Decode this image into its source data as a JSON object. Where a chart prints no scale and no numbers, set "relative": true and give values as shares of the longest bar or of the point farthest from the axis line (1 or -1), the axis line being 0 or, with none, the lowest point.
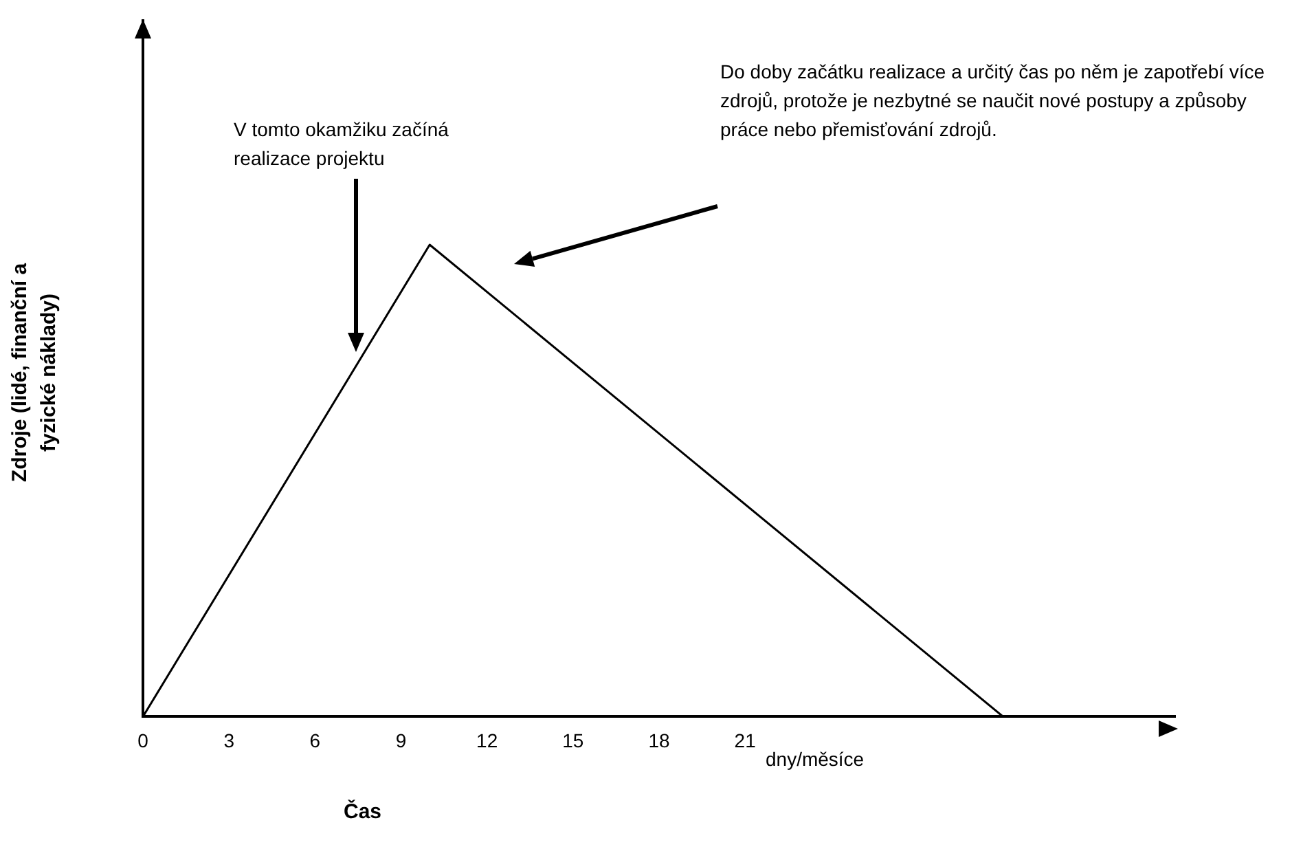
{
  "chart_data": {
    "type": "line",
    "relative": true,
    "xlabel": "Čas",
    "ylabel": "Zdroje  (lidé, finanční a fyzické náklady)",
    "x": [
      0,
      10,
      30
    ],
    "values": [
      0,
      1,
      0
    ],
    "color": "#000000",
    "xlim": [
      0,
      36
    ],
    "xticks": [
      0,
      3,
      6,
      9,
      12,
      15,
      18,
      21
    ],
    "grid": false,
    "legend": false,
    "marker": "none",
    "line_style": "solid",
    "annotations": [
      "V tomto okamžiku začíná realizace projektu",
      "Do doby začátku realizace a určitý čas po něm je zapotřebí více zdrojů, protože je nezbytné se naučit nové postupy a způsoby práce nebo přemisťování zdrojů.",
      "dny/měsíce"
    ]
  }
}
